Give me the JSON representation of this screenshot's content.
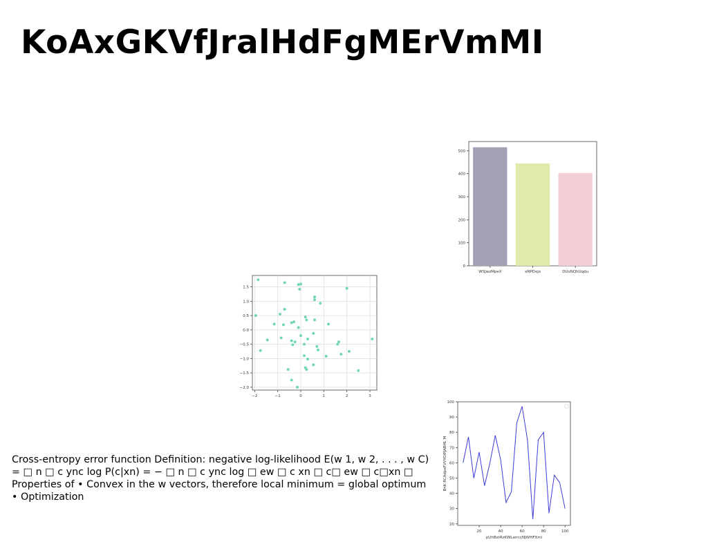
{
  "slide": {
    "title": "KoAxGKVfJralHdFgMErVmMI",
    "body_text": "Cross-entropy error function Definition: negative log-likelihood E(w 1, w 2, . . . , w C) = □ n □ c ync log P(c|xn) = − □ n □ c ync log □ ew □ c xn □ c□ ew □ c□xn □ Properties of • Convex in the w vectors, therefore local minimum = global optimum • Optimization"
  },
  "chart_data": [
    {
      "type": "bar",
      "categories": [
        "WSJwzMpeX",
        "xNPDxjo",
        "DUvNQhUqdu"
      ],
      "values": [
        515,
        445,
        403
      ],
      "colors": [
        "#a3a0b4",
        "#e2eaab",
        "#f3cfd6"
      ],
      "ylim": [
        0,
        540
      ],
      "yticks": [
        0,
        100,
        200,
        300,
        400,
        500
      ],
      "grid": false
    },
    {
      "type": "scatter",
      "color": "#72d6b4",
      "xlim": [
        -2.1,
        3.3
      ],
      "ylim": [
        -2.1,
        1.9
      ],
      "xticks": [
        -2,
        -1,
        0,
        1,
        2,
        3
      ],
      "yticks": [
        1.5,
        1.0,
        0.5,
        0.0,
        -0.5,
        -1.0,
        -1.5,
        -2.0
      ],
      "ytick_labels": [
        "1.5",
        "1.0",
        "0.5",
        "0.0",
        "−0.5",
        "−1.0",
        "−1.5",
        "−2.0"
      ],
      "xtick_labels": [
        "−2",
        "−1",
        "0",
        "1",
        "2",
        "3"
      ],
      "grid": true,
      "x": [
        -1.85,
        -1.95,
        -1.75,
        -0.7,
        -0.1,
        0.0,
        -0.05,
        0.6,
        0.6,
        0.85,
        2.0,
        -0.9,
        -0.7,
        -0.75,
        -1.45,
        -1.15,
        -0.4,
        -0.3,
        0.2,
        0.25,
        0.6,
        1.2,
        -0.1,
        0.55,
        -0.85,
        0.0,
        -0.35,
        -0.25,
        -0.4,
        0.15,
        0.3,
        0.7,
        0.75,
        1.65,
        1.6,
        1.75,
        2.1,
        1.1,
        0.15,
        0.3,
        0.55,
        0.2,
        0.25,
        -0.55,
        -0.4,
        -0.15,
        3.1,
        2.5
      ],
      "y": [
        1.75,
        0.5,
        -0.72,
        1.65,
        1.58,
        1.6,
        1.42,
        1.15,
        1.05,
        0.93,
        1.45,
        0.55,
        0.72,
        0.18,
        -0.35,
        0.2,
        0.25,
        0.28,
        0.45,
        0.35,
        0.35,
        0.2,
        0.08,
        -0.12,
        -0.28,
        -0.2,
        -0.52,
        -0.42,
        -0.38,
        -0.5,
        -0.32,
        -0.58,
        -0.7,
        -0.42,
        -0.5,
        -0.85,
        -0.75,
        -0.92,
        -0.9,
        -1.02,
        -1.22,
        -1.32,
        -1.38,
        -1.38,
        -1.75,
        -2.0,
        -0.32,
        -1.42
      ]
    },
    {
      "type": "line",
      "color": "#3b3bd8",
      "xlabel": "pUhBsrRzKWLarrccNJWHFXmi",
      "ylabel": "BnK RCAdpeFVVYOlPJABHL M",
      "xlim": [
        0,
        105
      ],
      "ylim": [
        19,
        100
      ],
      "xticks": [
        20,
        40,
        60,
        80,
        100
      ],
      "yticks": [
        20,
        30,
        40,
        50,
        60,
        70,
        80,
        90,
        100
      ],
      "grid": false,
      "x": [
        5,
        10,
        15,
        20,
        25,
        30,
        35,
        40,
        45,
        50,
        55,
        60,
        65,
        70,
        75,
        80,
        85,
        90,
        95,
        100
      ],
      "y": [
        60,
        77,
        50,
        67,
        45,
        60,
        78,
        62,
        34,
        41,
        86,
        97,
        75,
        23,
        75,
        80,
        27,
        52,
        47,
        30
      ]
    }
  ]
}
